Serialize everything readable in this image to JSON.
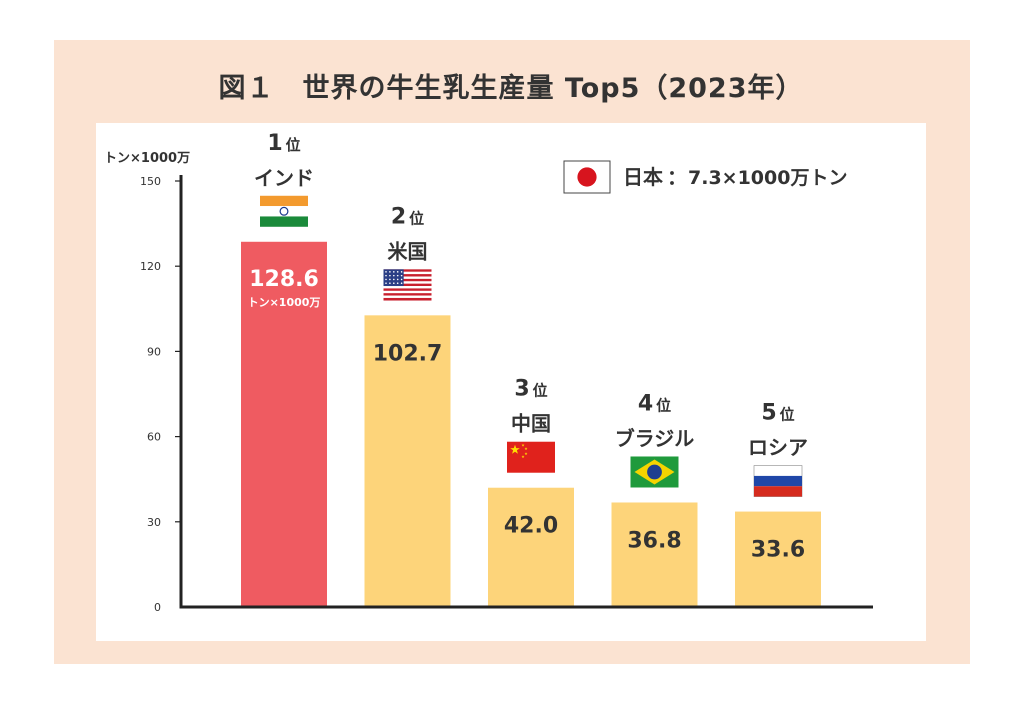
{
  "title": "図１　世界の牛生乳生産量 Top5（2023年）",
  "colors": {
    "frame": "#fbe3d2",
    "top_bar": "#ef5b61",
    "bar": "#fdd47a",
    "axis": "#222222",
    "text": "#333333"
  },
  "note": {
    "flag": "japan-flag-icon",
    "country": "日本",
    "colon": "：",
    "value": "7.3×1000万トン"
  },
  "chart_data": {
    "type": "bar",
    "title": "世界の牛生乳生産量 Top5（2023年）",
    "ylabel": "トン×1000万",
    "ylim": [
      0,
      150
    ],
    "yticks": [
      0,
      30,
      60,
      90,
      120,
      150
    ],
    "categories": [
      "インド",
      "米国",
      "中国",
      "ブラジル",
      "ロシア"
    ],
    "values": [
      128.6,
      102.7,
      42.0,
      36.8,
      33.6
    ],
    "value_labels": [
      "128.6",
      "102.7",
      "42.0",
      "36.8",
      "33.6"
    ],
    "ranks": [
      "1",
      "2",
      "3",
      "4",
      "5"
    ],
    "rank_suffix": "位",
    "flags": [
      "india-flag-icon",
      "usa-flag-icon",
      "china-flag-icon",
      "brazil-flag-icon",
      "russia-flag-icon"
    ],
    "top_bar_unit": "トン×1000万",
    "grid": false
  }
}
